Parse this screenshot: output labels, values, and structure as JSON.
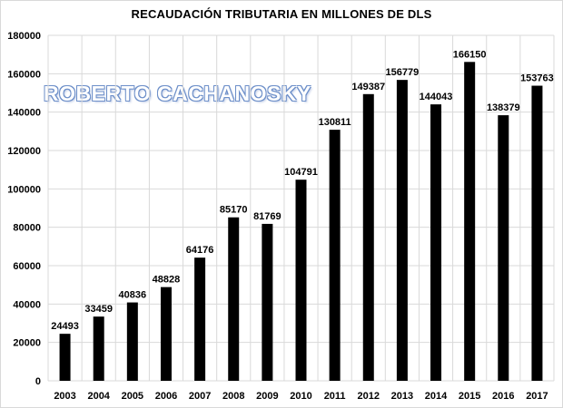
{
  "chart_data": {
    "type": "bar",
    "title": "RECAUDACIÓN  TRIBUTARIA  EN MILLONES  DE DLS",
    "watermark": "ROBERTO CACHANOSKY",
    "categories": [
      "2003",
      "2004",
      "2005",
      "2006",
      "2007",
      "2008",
      "2009",
      "2010",
      "2011",
      "2012",
      "2013",
      "2014",
      "2015",
      "2016",
      "2017"
    ],
    "values": [
      24493,
      33459,
      40836,
      48828,
      64176,
      85170,
      81769,
      104791,
      130811,
      149387,
      156779,
      144043,
      166150,
      138379,
      153763
    ],
    "ylim": [
      0,
      180000
    ],
    "yticks": [
      0,
      20000,
      40000,
      60000,
      80000,
      100000,
      120000,
      140000,
      160000,
      180000
    ],
    "xlabel": "",
    "ylabel": "",
    "grid": true,
    "colors": {
      "bar": "#000000",
      "grid": "#d9d9d9",
      "watermark_outline": "#6d8fc9"
    }
  }
}
